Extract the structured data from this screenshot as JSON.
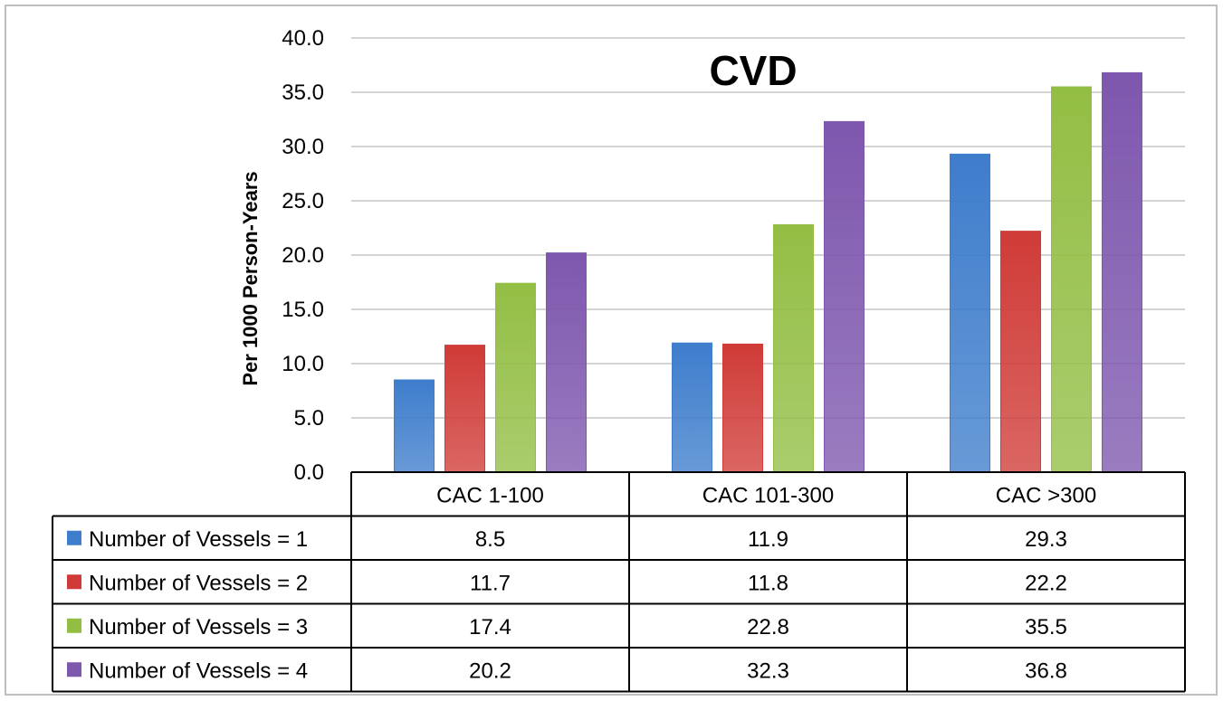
{
  "chart_data": {
    "type": "bar",
    "title": "CVD",
    "xlabel": "",
    "ylabel": "Per 1000 Person-Years",
    "ylim": [
      0,
      40
    ],
    "yticks": [
      "0.0",
      "5.0",
      "10.0",
      "15.0",
      "20.0",
      "25.0",
      "30.0",
      "35.0",
      "40.0"
    ],
    "grid": true,
    "legend": "data-table",
    "categories": [
      "CAC 1-100",
      "CAC 101-300",
      "CAC >300"
    ],
    "series": [
      {
        "name": "Number of Vessels = 1",
        "color": "#3E7DCC",
        "values": [
          8.5,
          11.9,
          29.3
        ],
        "labels": [
          "8.5",
          "11.9",
          "29.3"
        ]
      },
      {
        "name": "Number of Vessels = 2",
        "color": "#D03B37",
        "values": [
          11.7,
          11.8,
          22.2
        ],
        "labels": [
          "11.7",
          "11.8",
          "22.2"
        ]
      },
      {
        "name": "Number of Vessels = 3",
        "color": "#93BE44",
        "values": [
          17.4,
          22.8,
          35.5
        ],
        "labels": [
          "17.4",
          "22.8",
          "35.5"
        ]
      },
      {
        "name": "Number of Vessels = 4",
        "color": "#7E57AE",
        "values": [
          20.2,
          32.3,
          36.8
        ],
        "labels": [
          "20.2",
          "32.3",
          "36.8"
        ]
      }
    ]
  }
}
